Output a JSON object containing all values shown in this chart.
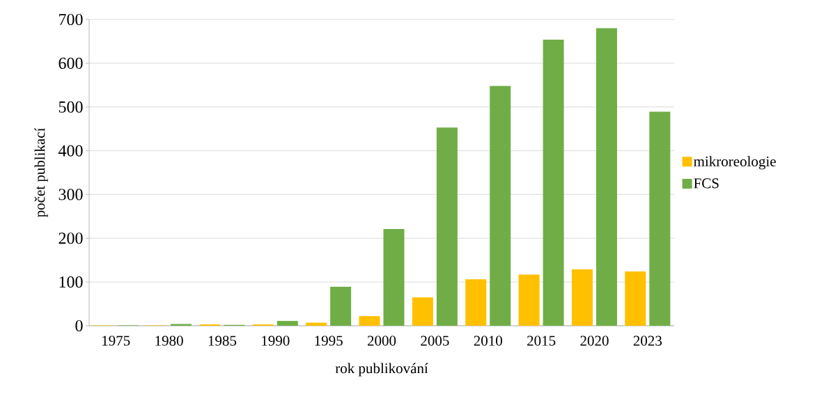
{
  "chart_data": {
    "type": "bar",
    "xlabel": "rok publikování",
    "ylabel": "počet publikací",
    "categories": [
      "1975",
      "1980",
      "1985",
      "1990",
      "1995",
      "2000",
      "2005",
      "2010",
      "2015",
      "2020",
      "2023"
    ],
    "series": [
      {
        "name": "mikroreologie",
        "color": "#ffc000",
        "values": [
          1,
          1,
          3,
          3,
          7,
          22,
          65,
          106,
          117,
          129,
          124
        ]
      },
      {
        "name": "FCS",
        "color": "#70ad47",
        "values": [
          1,
          4,
          2,
          11,
          89,
          221,
          453,
          548,
          654,
          680,
          489
        ]
      }
    ],
    "ylim": [
      0,
      700
    ],
    "yticks": [
      0,
      100,
      200,
      300,
      400,
      500,
      600,
      700
    ],
    "grid": "y",
    "legend": "right"
  }
}
